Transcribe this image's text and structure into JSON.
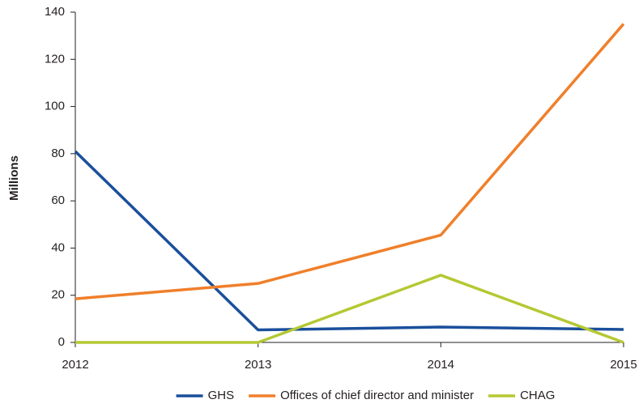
{
  "chart_data": {
    "type": "line",
    "y_label": "Millions",
    "categories": [
      "2012",
      "2013",
      "2014",
      "2015"
    ],
    "series": [
      {
        "name": "GHS",
        "color": "#1a4f9c",
        "values": [
          81,
          5.3,
          6.5,
          5.5
        ]
      },
      {
        "name": "Offices of chief director and minister",
        "color": "#f07f2a",
        "values": [
          18.5,
          25,
          45.5,
          135
        ]
      },
      {
        "name": "CHAG",
        "color": "#b5c833",
        "values": [
          0,
          0,
          28.5,
          0
        ]
      }
    ],
    "ylim": [
      0,
      140
    ],
    "yticks": [
      0,
      20,
      40,
      60,
      80,
      100,
      120,
      140
    ],
    "grid": false,
    "legend": "bottom"
  }
}
